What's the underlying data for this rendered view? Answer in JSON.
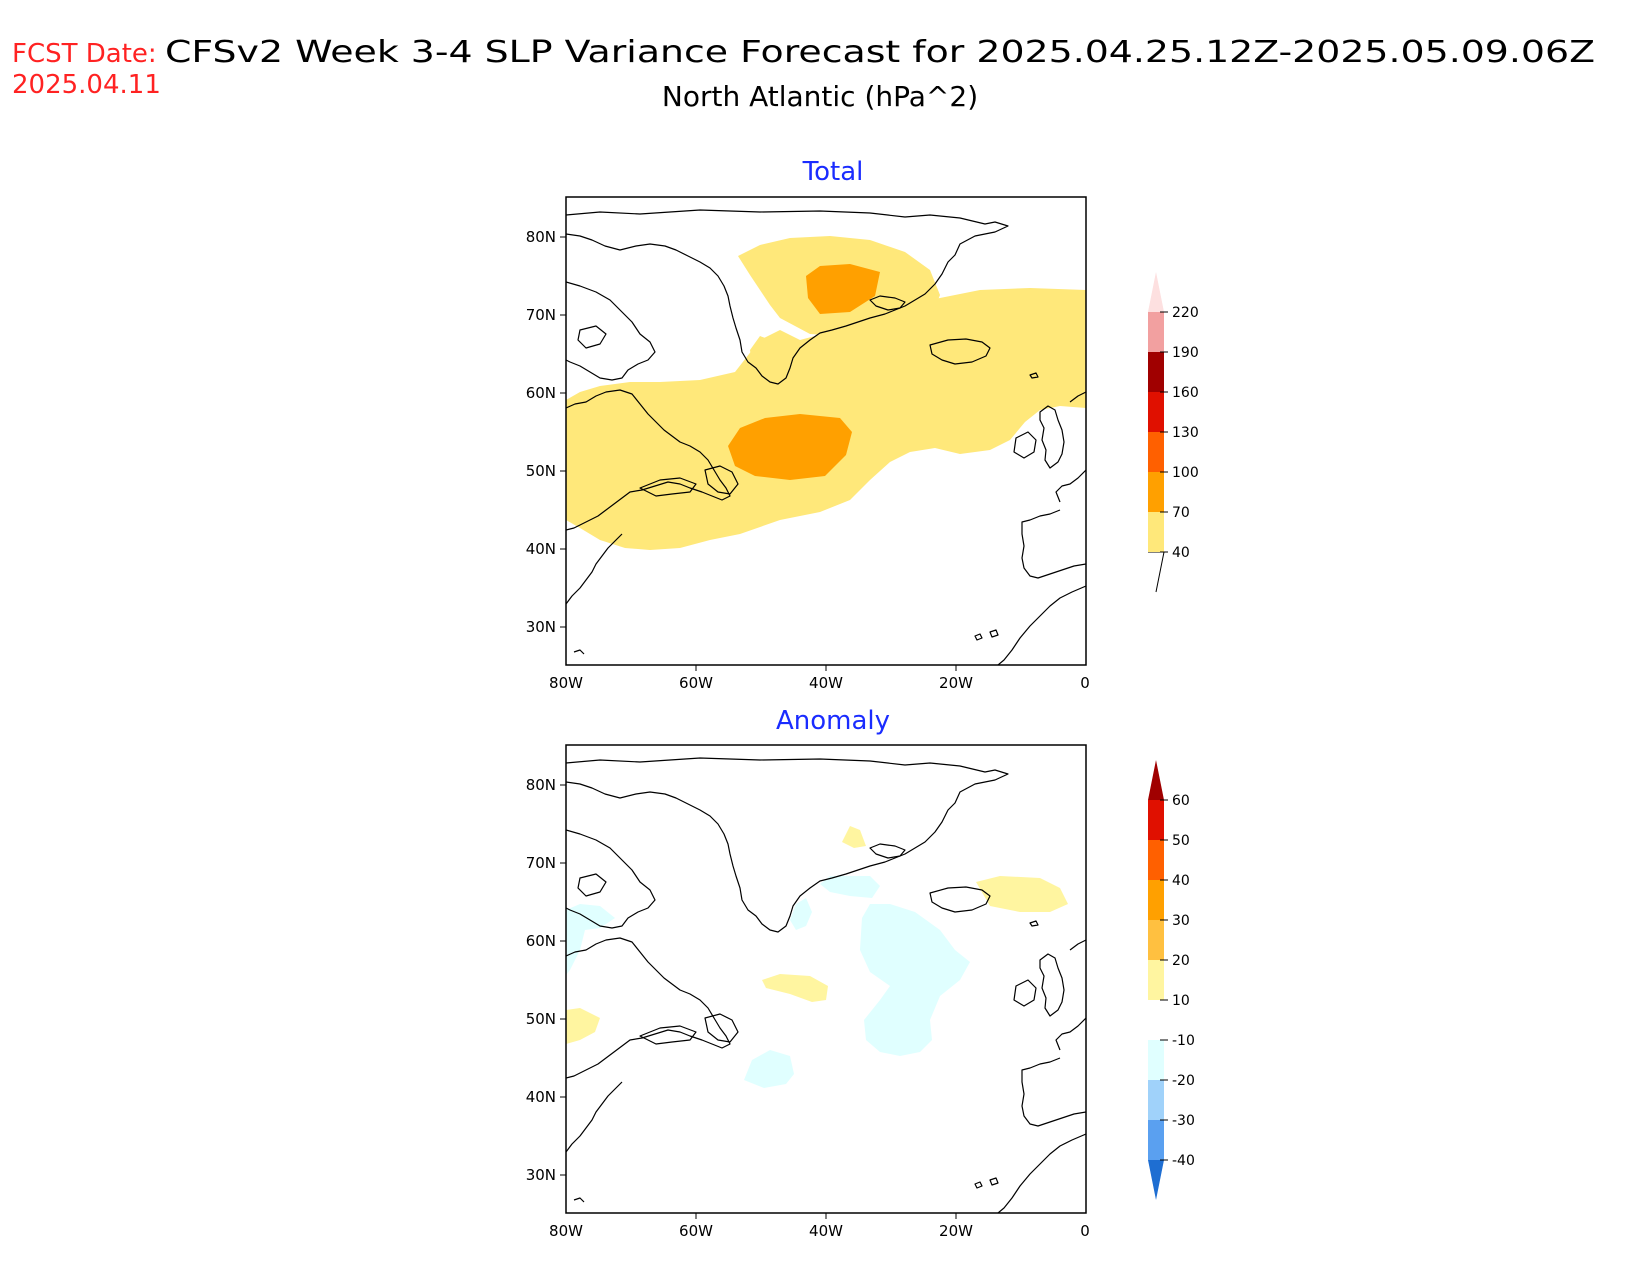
{
  "header": {
    "fcst_label": "FCST Date:",
    "fcst_date": "2025.04.11",
    "title_line1": "CFSv2 Week 3-4 SLP Variance Forecast for 2025.04.25.12Z-2025.05.09.06Z",
    "title_line2": "North Atlantic (hPa^2)"
  },
  "axes": {
    "lat_labels": [
      "80N",
      "70N",
      "60N",
      "50N",
      "40N",
      "30N"
    ],
    "lon_labels": [
      "80W",
      "60W",
      "40W",
      "20W",
      "0"
    ]
  },
  "panels": [
    {
      "title": "Total",
      "colorbar": {
        "levels": [
          "40",
          "70",
          "100",
          "130",
          "160",
          "190",
          "220"
        ],
        "colors": [
          "#ffe87a",
          "#ffa000",
          "#ff6000",
          "#e01000",
          "#a00000",
          "#f2a0a0",
          "#fde0e0"
        ]
      }
    },
    {
      "title": "Anomaly",
      "colorbar": {
        "levels": [
          "60",
          "50",
          "40",
          "30",
          "20",
          "10",
          "-10",
          "-20",
          "-30",
          "-40"
        ],
        "colors": [
          "#a00000",
          "#e01000",
          "#ff6000",
          "#ffa000",
          "#ffc040",
          "#fff5a0",
          "#ffffff",
          "#e0ffff",
          "#a0d2fa",
          "#5aa0f0",
          "#1e6ed2"
        ]
      }
    }
  ],
  "colors": {
    "title_accent": "#ff2222",
    "panel_title": "#1a2cff"
  }
}
